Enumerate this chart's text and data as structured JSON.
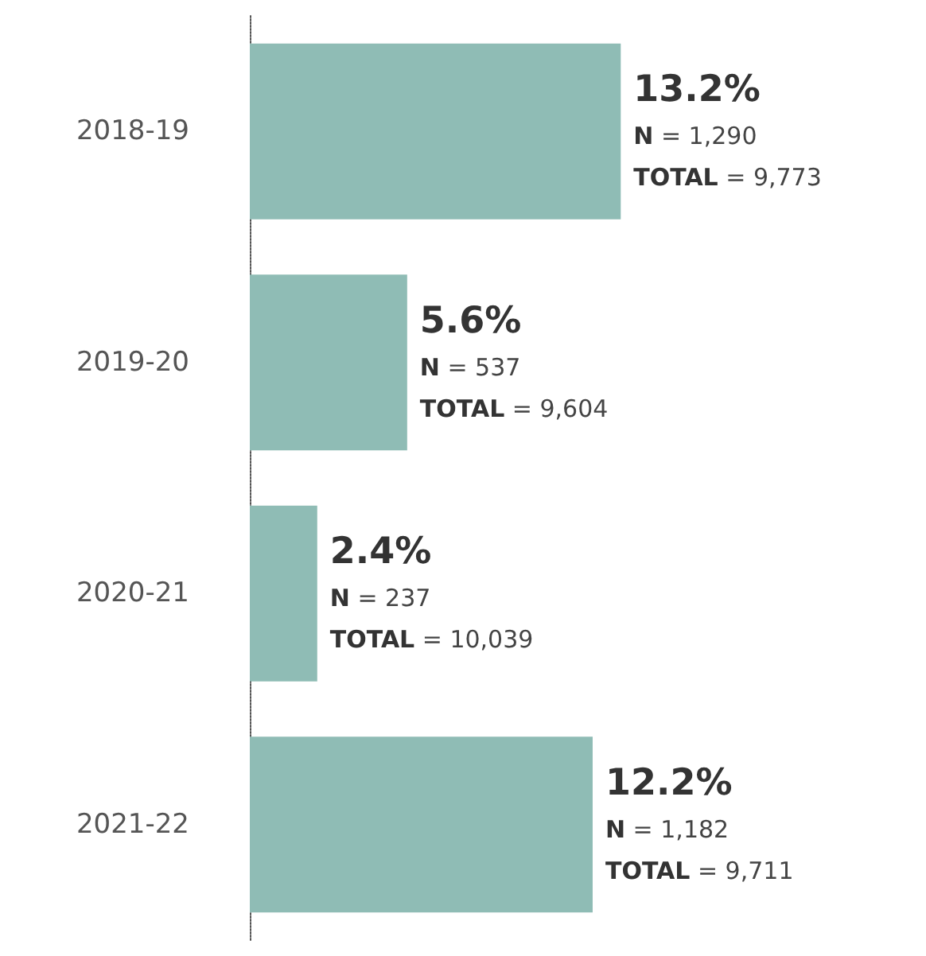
{
  "chart_data": {
    "type": "bar",
    "orientation": "horizontal",
    "categories": [
      "2018-19",
      "2019-20",
      "2020-21",
      "2021-22"
    ],
    "values": [
      13.2,
      5.6,
      2.4,
      12.2
    ],
    "color": "#8fbcb5",
    "value_labels": [
      "13.2%\nN = 1,290\nTOTAL = 9,773",
      "5.6%\nN = 537\nTOTAL = 9,604",
      "2.4%\nN = 237\nTOTAL = 10,039",
      "12.2%\nN = 1,182\nTOTAL = 9,711"
    ],
    "grid": false
  }
}
